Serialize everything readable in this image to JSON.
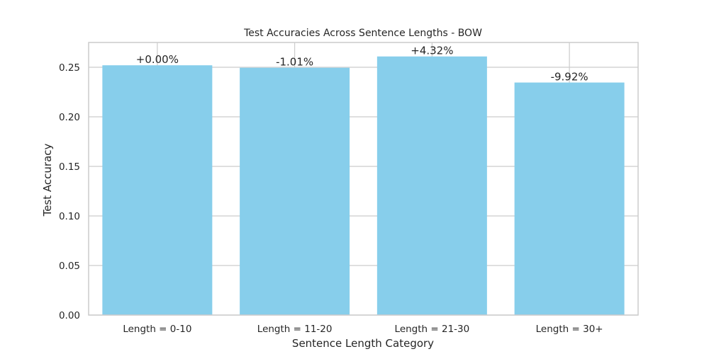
{
  "chart_data": {
    "type": "bar",
    "title": "Test Accuracies Across Sentence Lengths - BOW",
    "xlabel": "Sentence Length Category",
    "ylabel": "Test Accuracy",
    "categories": [
      "Length = 0-10",
      "Length = 11-20",
      "Length = 21-30",
      "Length = 30+"
    ],
    "values": [
      0.252,
      0.2495,
      0.2609,
      0.2346
    ],
    "data_labels": [
      "+0.00%",
      "-1.01%",
      "+4.32%",
      "-9.92%"
    ],
    "ylim": [
      0,
      0.275
    ],
    "yticks": [
      0.0,
      0.05,
      0.1,
      0.15,
      0.2,
      0.25
    ],
    "ytick_labels": [
      "0.00",
      "0.05",
      "0.10",
      "0.15",
      "0.20",
      "0.25"
    ],
    "grid": true,
    "legend": "none",
    "bar_color": "#87ceeb",
    "grid_color": "#cccccc",
    "spine_color": "#cccccc"
  }
}
